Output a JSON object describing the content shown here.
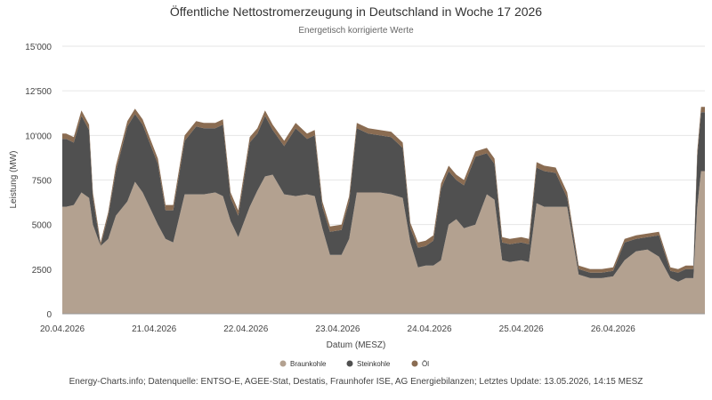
{
  "chart_data": {
    "type": "area",
    "stacked": true,
    "title": "Öffentliche Nettostromerzeugung in Deutschland in Woche 17 2026",
    "subtitle": "Energetisch korrigierte Werte",
    "xlabel": "Datum (MESZ)",
    "ylabel": "Leistung (MW)",
    "ylim": [
      0,
      15000
    ],
    "y_ticks": [
      "0",
      "2500",
      "5000",
      "7500",
      "10'000",
      "12'500",
      "15'000"
    ],
    "x_ticks": [
      "20.04.2026",
      "21.04.2026",
      "22.04.2026",
      "23.04.2026",
      "24.04.2026",
      "25.04.2026",
      "26.04.2026"
    ],
    "x": [
      "20.04.2026 00:00",
      "20.04.2026 01:00",
      "20.04.2026 03:00",
      "20.04.2026 05:00",
      "20.04.2026 07:00",
      "20.04.2026 08:00",
      "20.04.2026 10:00",
      "20.04.2026 12:00",
      "20.04.2026 14:00",
      "20.04.2026 17:00",
      "20.04.2026 19:00",
      "20.04.2026 21:00",
      "21.04.2026 01:00",
      "21.04.2026 03:00",
      "21.04.2026 05:00",
      "21.04.2026 08:00",
      "21.04.2026 11:00",
      "21.04.2026 13:00",
      "21.04.2026 16:00",
      "21.04.2026 18:00",
      "21.04.2026 20:00",
      "21.04.2026 22:00",
      "22.04.2026 01:00",
      "22.04.2026 03:00",
      "22.04.2026 05:00",
      "22.04.2026 07:00",
      "22.04.2026 10:00",
      "22.04.2026 13:00",
      "22.04.2026 16:00",
      "22.04.2026 18:00",
      "22.04.2026 20:00",
      "22.04.2026 22:00",
      "23.04.2026 01:00",
      "23.04.2026 03:00",
      "23.04.2026 05:00",
      "23.04.2026 08:00",
      "23.04.2026 11:00",
      "23.04.2026 14:00",
      "23.04.2026 17:00",
      "23.04.2026 19:00",
      "23.04.2026 21:00",
      "23.04.2026 23:00",
      "24.04.2026 01:00",
      "24.04.2026 03:00",
      "24.04.2026 05:00",
      "24.04.2026 07:00",
      "24.04.2026 09:00",
      "24.04.2026 12:00",
      "24.04.2026 15:00",
      "24.04.2026 17:00",
      "24.04.2026 19:00",
      "24.04.2026 21:00",
      "25.04.2026 00:00",
      "25.04.2026 02:00",
      "25.04.2026 04:00",
      "25.04.2026 06:00",
      "25.04.2026 09:00",
      "25.04.2026 12:00",
      "25.04.2026 15:00",
      "25.04.2026 18:00",
      "25.04.2026 21:00",
      "26.04.2026 00:00",
      "26.04.2026 03:00",
      "26.04.2026 06:00",
      "26.04.2026 09:00",
      "26.04.2026 12:00",
      "26.04.2026 15:00",
      "26.04.2026 17:00",
      "26.04.2026 19:00",
      "26.04.2026 21:00",
      "26.04.2026 22:00",
      "26.04.2026 23:00",
      "27.04.2026 00:00"
    ],
    "series": [
      {
        "name": "Braunkohle",
        "color": "#b3a190",
        "values": [
          6000,
          6000,
          6100,
          6800,
          6500,
          5000,
          3800,
          4200,
          5500,
          6300,
          7400,
          6800,
          5000,
          4200,
          4000,
          6700,
          6700,
          6700,
          6800,
          6600,
          5200,
          4300,
          6000,
          6900,
          7700,
          7800,
          6700,
          6600,
          6700,
          6600,
          4800,
          3300,
          3300,
          4200,
          6800,
          6800,
          6800,
          6700,
          6500,
          4000,
          2600,
          2700,
          2700,
          3000,
          5000,
          5300,
          4800,
          5000,
          6700,
          6400,
          3000,
          2900,
          3000,
          2900,
          6200,
          6000,
          6000,
          6000,
          2200,
          2000,
          2000,
          2100,
          3000,
          3500,
          3600,
          3200,
          2000,
          1800,
          2000,
          2000,
          6000,
          8000,
          8000
        ]
      },
      {
        "name": "Steinkohle",
        "color": "#505050",
        "values": [
          3800,
          3800,
          3500,
          4300,
          3800,
          1500,
          0,
          1300,
          2500,
          4200,
          3800,
          3800,
          3400,
          1600,
          1800,
          3000,
          3800,
          3700,
          3600,
          4000,
          1300,
          1200,
          3600,
          3200,
          3400,
          2500,
          2700,
          3800,
          3100,
          3400,
          1200,
          1300,
          1400,
          2100,
          3600,
          3300,
          3200,
          3200,
          2800,
          800,
          1100,
          1100,
          1400,
          4000,
          3000,
          2200,
          2400,
          3800,
          2300,
          2000,
          1000,
          1000,
          1000,
          1000,
          2000,
          2000,
          1900,
          500,
          300,
          300,
          300,
          300,
          1000,
          700,
          700,
          1200,
          400,
          500,
          500,
          500,
          2800,
          3300,
          3300
        ]
      },
      {
        "name": "Öl",
        "color": "#8a6c52",
        "values": [
          300,
          300,
          300,
          300,
          300,
          300,
          200,
          200,
          300,
          300,
          300,
          300,
          300,
          300,
          300,
          300,
          300,
          300,
          300,
          300,
          300,
          300,
          300,
          300,
          300,
          300,
          300,
          300,
          300,
          300,
          300,
          300,
          300,
          300,
          300,
          300,
          300,
          300,
          300,
          300,
          300,
          300,
          300,
          300,
          300,
          300,
          300,
          300,
          300,
          300,
          300,
          300,
          300,
          300,
          300,
          300,
          300,
          300,
          200,
          200,
          200,
          200,
          200,
          200,
          200,
          200,
          200,
          200,
          200,
          200,
          300,
          300,
          300
        ]
      }
    ],
    "grid": true,
    "legend_position": "bottom",
    "source": "Energy-Charts.info; Datenquelle: ENTSO-E, AGEE-Stat, Destatis, Fraunhofer ISE, AG Energiebilanzen; Letztes Update: 13.05.2026, 14:15 MESZ"
  }
}
